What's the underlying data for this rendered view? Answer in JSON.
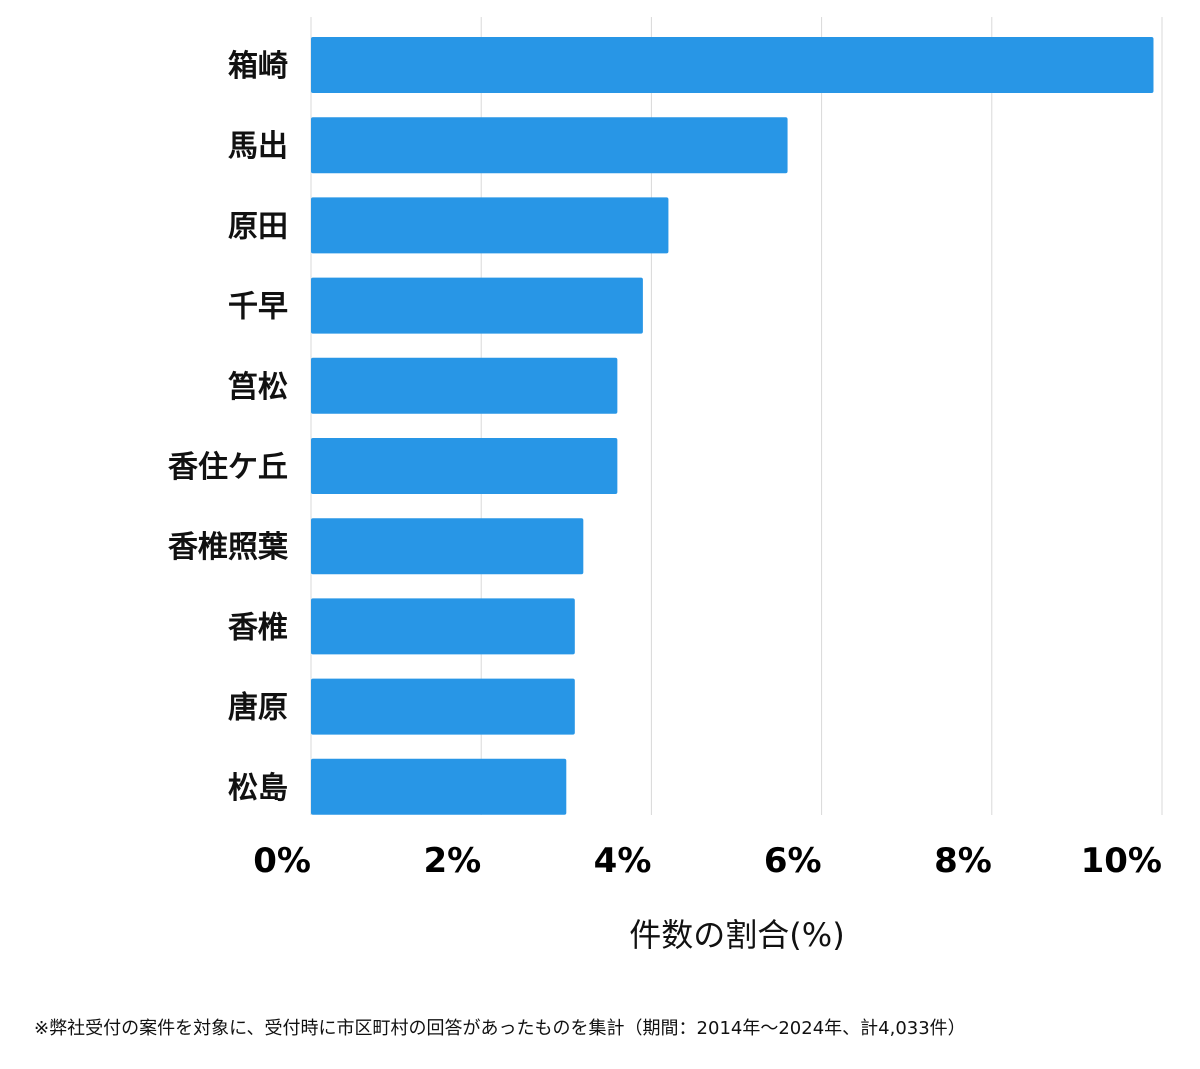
{
  "chart_data": {
    "type": "bar",
    "orientation": "horizontal",
    "categories": [
      "箱崎",
      "馬出",
      "原田",
      "千早",
      "筥松",
      "香住ケ丘",
      "香椎照葉",
      "香椎",
      "唐原",
      "松島"
    ],
    "values": [
      9.9,
      5.6,
      4.2,
      3.9,
      3.6,
      3.6,
      3.2,
      3.1,
      3.1,
      3.0
    ],
    "xlim": [
      0,
      10
    ],
    "xticks": [
      0,
      2,
      4,
      6,
      8,
      10
    ],
    "xtick_labels": [
      "0%",
      "2%",
      "4%",
      "6%",
      "8%",
      "10%"
    ],
    "xlabel": "件数の割合(%)",
    "ylabel": "",
    "title": "",
    "grid": true,
    "bar_color": "#2896e6",
    "grid_color": "#d9d9d9"
  },
  "footnote": "※弊社受付の案件を対象に、受付時に市区町村の回答があったものを集計（期間：2014年～2024年、計4,033件）"
}
